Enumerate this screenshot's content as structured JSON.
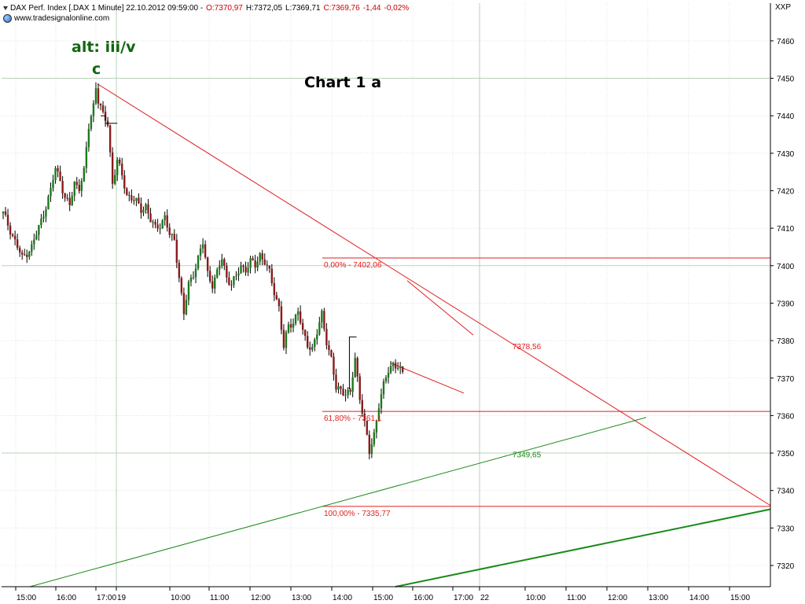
{
  "header": {
    "instrument": "DAX Perf. Index [.DAX  1 Minute] 22.10.2012 09:59:00 -",
    "open": "O:7370,97",
    "high": "H:7372,05",
    "low": "L:7369,71",
    "close": "C:7369,76",
    "change": "-1,44",
    "change_pct": "-0,02%",
    "site": "www.tradesignalonline.com",
    "symbol_tag": "XXP"
  },
  "annotations": {
    "title": "Chart 1 a",
    "wave_label": "alt: iii/v",
    "wave_c": "c",
    "fib_0": "0,00% - 7402,06",
    "fib_618": "61,80% - 7361,1",
    "fib_100": "100,00% - 7335,77",
    "level_red": "7378,56",
    "level_green": "7349,65"
  },
  "colors": {
    "candle_up": "#1a7a1a",
    "candle_down": "#8b1a1a",
    "wick": "#000000",
    "resistance": "#e02020",
    "support": "#1a8a1a",
    "grid": "#d0d0d0",
    "grid_major": "#b7d3b7"
  },
  "chart_data": {
    "type": "candlestick",
    "x_tick_labels": [
      "15:00",
      "16:00",
      "17:00",
      "19",
      "10:00",
      "11:00",
      "12:00",
      "13:00",
      "14:00",
      "15:00",
      "16:00",
      "17:00",
      "22",
      "10:00",
      "11:00",
      "12:00",
      "13:00",
      "14:00",
      "15:00"
    ],
    "y_ticks": [
      7320,
      7330,
      7340,
      7350,
      7360,
      7370,
      7380,
      7390,
      7400,
      7410,
      7420,
      7430,
      7440,
      7450,
      7460
    ],
    "ylim": [
      7314,
      7466
    ],
    "horizontal_levels": [
      {
        "name": "fib-0",
        "value": 7402.06
      },
      {
        "name": "fib-618",
        "value": 7361.1
      },
      {
        "name": "fib-100",
        "value": 7335.77
      }
    ],
    "price_path": [
      [
        0,
        7414
      ],
      [
        2,
        7408
      ],
      [
        4,
        7402
      ],
      [
        6,
        7405
      ],
      [
        8,
        7412
      ],
      [
        10,
        7420
      ],
      [
        11,
        7426
      ],
      [
        12,
        7423
      ],
      [
        13,
        7418
      ],
      [
        14,
        7416
      ],
      [
        15,
        7422
      ],
      [
        16,
        7421
      ],
      [
        17,
        7425
      ],
      [
        18,
        7437
      ],
      [
        19,
        7443
      ],
      [
        19.5,
        7448
      ],
      [
        20,
        7444
      ],
      [
        21,
        7440
      ],
      [
        22,
        7438
      ],
      [
        23,
        7422
      ],
      [
        24,
        7428
      ],
      [
        25,
        7424
      ],
      [
        26,
        7419
      ],
      [
        27,
        7418
      ],
      [
        28,
        7417
      ],
      [
        29,
        7415
      ],
      [
        30,
        7416
      ],
      [
        31,
        7412
      ],
      [
        32,
        7410
      ],
      [
        33,
        7411
      ],
      [
        34,
        7413
      ],
      [
        35,
        7408
      ],
      [
        36,
        7407
      ],
      [
        37,
        7397
      ],
      [
        38,
        7387
      ],
      [
        39,
        7395
      ],
      [
        40,
        7398
      ],
      [
        41,
        7402
      ],
      [
        42,
        7406
      ],
      [
        43,
        7398
      ],
      [
        44,
        7395
      ],
      [
        45,
        7398
      ],
      [
        46,
        7402
      ],
      [
        47,
        7397
      ],
      [
        48,
        7395
      ],
      [
        49,
        7397
      ],
      [
        50,
        7400
      ],
      [
        51,
        7399
      ],
      [
        52,
        7401
      ],
      [
        53,
        7400
      ],
      [
        54,
        7403
      ],
      [
        55,
        7401
      ],
      [
        56,
        7398
      ],
      [
        57,
        7393
      ],
      [
        58,
        7389
      ],
      [
        59,
        7378
      ],
      [
        60,
        7384
      ],
      [
        61,
        7385
      ],
      [
        62,
        7388
      ],
      [
        63,
        7382
      ],
      [
        64,
        7379
      ],
      [
        65,
        7378
      ],
      [
        66,
        7382
      ],
      [
        67,
        7387
      ],
      [
        68,
        7380
      ],
      [
        69,
        7375
      ],
      [
        70,
        7367
      ],
      [
        71,
        7367
      ],
      [
        72,
        7366
      ],
      [
        73,
        7366
      ],
      [
        74,
        7375
      ],
      [
        75,
        7365
      ],
      [
        76,
        7358
      ],
      [
        77,
        7350
      ],
      [
        78,
        7355
      ],
      [
        79,
        7363
      ],
      [
        80,
        7368
      ],
      [
        81,
        7372
      ],
      [
        82,
        7374
      ],
      [
        83,
        7373
      ],
      [
        84,
        7371
      ]
    ]
  }
}
